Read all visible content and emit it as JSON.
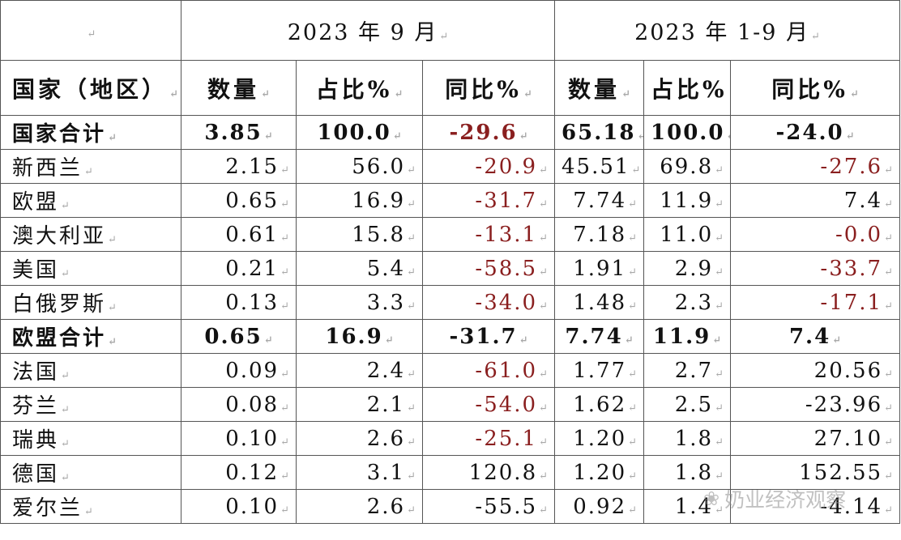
{
  "header": {
    "period_month": "2023 年 9 月",
    "period_ytd": "2023 年 1-9 月"
  },
  "columns": {
    "country": "国家（地区）",
    "qty_m": "数量",
    "share_m": "占比%",
    "yoy_m": "同比%",
    "qty_y": "数量",
    "share_y": "占比%",
    "yoy_y": "同比%"
  },
  "rows": [
    {
      "name": "国家合计",
      "qm": "3.85",
      "sm": "100.0",
      "ym": "-29.6",
      "qy": "65.18",
      "sy": "100.0",
      "yy": "-24.0"
    },
    {
      "name": "新西兰",
      "qm": "2.15",
      "sm": "56.0",
      "ym": "-20.9",
      "qy": "45.51",
      "sy": "69.8",
      "yy": "-27.6"
    },
    {
      "name": "欧盟",
      "qm": "0.65",
      "sm": "16.9",
      "ym": "-31.7",
      "qy": "7.74",
      "sy": "11.9",
      "yy": "7.4"
    },
    {
      "name": "澳大利亚",
      "qm": "0.61",
      "sm": "15.8",
      "ym": "-13.1",
      "qy": "7.18",
      "sy": "11.0",
      "yy": "-0.0"
    },
    {
      "name": "美国",
      "qm": "0.21",
      "sm": "5.4",
      "ym": "-58.5",
      "qy": "1.91",
      "sy": "2.9",
      "yy": "-33.7"
    },
    {
      "name": "白俄罗斯",
      "qm": "0.13",
      "sm": "3.3",
      "ym": "-34.0",
      "qy": "1.48",
      "sy": "2.3",
      "yy": "-17.1"
    },
    {
      "name": "欧盟合计",
      "qm": "0.65",
      "sm": "16.9",
      "ym": "-31.7",
      "qy": "7.74",
      "sy": "11.9",
      "yy": "7.4"
    },
    {
      "name": "法国",
      "qm": "0.09",
      "sm": "2.4",
      "ym": "-61.0",
      "qy": "1.77",
      "sy": "2.7",
      "yy": "20.56"
    },
    {
      "name": "芬兰",
      "qm": "0.08",
      "sm": "2.1",
      "ym": "-54.0",
      "qy": "1.62",
      "sy": "2.5",
      "yy": "-23.96"
    },
    {
      "name": "瑞典",
      "qm": "0.10",
      "sm": "2.6",
      "ym": "-25.1",
      "qy": "1.20",
      "sy": "1.8",
      "yy": "27.10"
    },
    {
      "name": "德国",
      "qm": "0.12",
      "sm": "3.1",
      "ym": "120.8",
      "qy": "1.20",
      "sy": "1.8",
      "yy": "152.55"
    },
    {
      "name": "爱尔兰",
      "qm": "0.10",
      "sm": "2.6",
      "ym": "-55.5",
      "qy": "0.92",
      "sy": "1.4",
      "yy": "-4.14"
    }
  ],
  "watermark": {
    "text": "奶业经济观察",
    "icon": "wechat-icon"
  },
  "colors": {
    "negative_red": "#8a1f1f",
    "text": "#111111",
    "border": "#555555"
  }
}
